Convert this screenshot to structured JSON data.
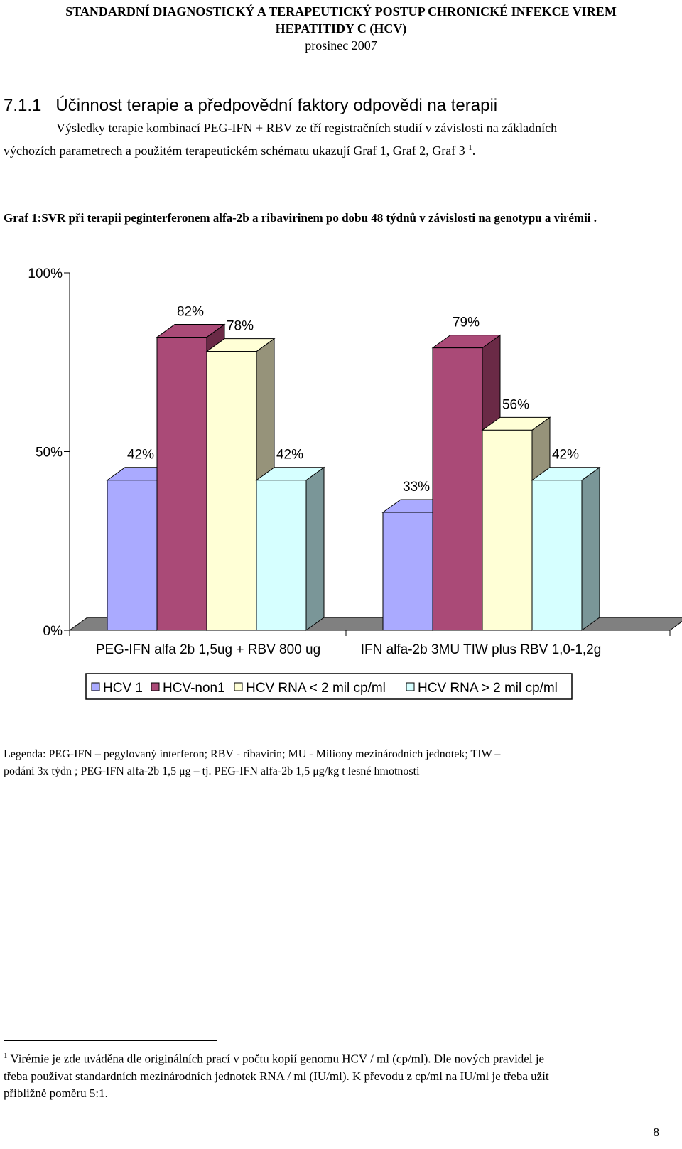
{
  "header": {
    "line1": "STANDARDNÍ DIAGNOSTICKÝ A TERAPEUTICKÝ POSTUP CHRONICKÉ  INFEKCE VIREM",
    "line2": "HEPATITIDY C (HCV)",
    "date": "prosinec 2007"
  },
  "section": {
    "number": "7.1.1",
    "title": "Účinnost terapie a předpovědní faktory odpovědi na terapii"
  },
  "intro": {
    "line1": "Výsledky terapie kombinací PEG-IFN + RBV ze tří registračních studií v závislosti na základních",
    "line2": "výchozích parametrech a použitém terapeutickém schématu ukazují Graf 1, Graf 2, Graf 3",
    "ref": "1",
    "end": "."
  },
  "figure_caption": "Graf 1:SVR při terapii peginterferonem alfa-2b a ribavirinem po dobu 48 týdnů v závislosti na genotypu a virémii .",
  "chart_data": {
    "type": "bar",
    "style": "3d-clustered",
    "categories": [
      "PEG-IFN alfa 2b 1,5ug + RBV 800 ug",
      "IFN alfa-2b 3MU TIW plus RBV 1,0-1,2g"
    ],
    "series": [
      {
        "name": "HCV 1",
        "values": [
          42,
          33
        ],
        "color": "#aaaaff",
        "side": "#7f7fbf"
      },
      {
        "name": "HCV-non1",
        "values": [
          82,
          79
        ],
        "color": "#aa4a77",
        "side": "#6a2a46"
      },
      {
        "name": "HCV RNA  < 2 mil cp/ml",
        "values": [
          78,
          56
        ],
        "color": "#ffffd6",
        "side": "#96937a"
      },
      {
        "name": "HCV RNA > 2 mil cp/ml",
        "values": [
          42,
          42
        ],
        "color": "#d6ffff",
        "side": "#7a9698"
      }
    ],
    "value_labels": [
      [
        "42%",
        "33%"
      ],
      [
        "82%",
        "79%"
      ],
      [
        "78%",
        "56%"
      ],
      [
        "42%",
        "42%"
      ]
    ],
    "y_ticks": [
      "100%",
      "50%",
      "0%"
    ],
    "ylim": [
      0,
      100
    ],
    "grid": false,
    "legend_position": "bottom"
  },
  "legend_note": {
    "line1": "Legenda: PEG-IFN – pegylovaný interferon; RBV -  ribavirin; MU  - Miliony mezinárodních jednotek; TIW –",
    "line2": "podání 3x týdn   ; PEG-IFN alfa-2b 1,5 μg – tj. PEG-IFN alfa-2b 1,5 μg/kg t   lesné hmotnosti"
  },
  "footnote": {
    "marker": "1",
    "line1": " Virémie je zde uváděna dle originálních prací v počtu kopií genomu HCV / ml (cp/ml). Dle nových pravidel je",
    "line2": "třeba používat standardních mezinárodních jednotek RNA / ml (IU/ml). K převodu z cp/ml na IU/ml je třeba užít",
    "line3": "přibližně poměru 5:1."
  },
  "page_number": "8"
}
